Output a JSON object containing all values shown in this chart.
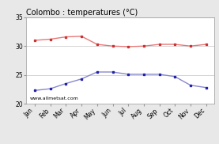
{
  "title": "Colombo : temperatures (°C)",
  "months": [
    "Jan",
    "Feb",
    "Mar",
    "Apr",
    "May",
    "Jun",
    "Jul",
    "Aug",
    "Sep",
    "Oct",
    "Nov",
    "Dec"
  ],
  "max_temps": [
    31.0,
    31.2,
    31.6,
    31.7,
    30.3,
    30.0,
    29.9,
    30.0,
    30.3,
    30.3,
    30.0,
    30.3
  ],
  "min_temps": [
    22.3,
    22.6,
    23.5,
    24.3,
    25.5,
    25.5,
    25.1,
    25.1,
    25.1,
    24.7,
    23.2,
    22.8
  ],
  "max_line_color": "#e87878",
  "max_marker_color": "#cc3333",
  "min_line_color": "#8888cc",
  "min_marker_color": "#2222aa",
  "ylim": [
    20,
    35
  ],
  "yticks": [
    20,
    25,
    30,
    35
  ],
  "grid_color": "#cccccc",
  "bg_color": "#e8e8e8",
  "plot_bg_color": "#ffffff",
  "title_fontsize": 7.0,
  "tick_fontsize": 5.5,
  "watermark": "www.allmetsat.com",
  "watermark_fontsize": 4.5
}
